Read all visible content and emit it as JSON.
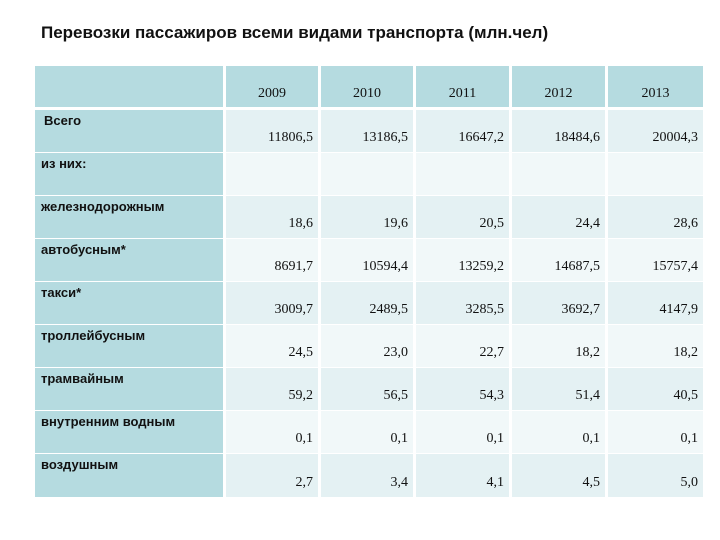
{
  "title": "Перевозки пассажиров всеми видами транспорта (млн.чел)",
  "table": {
    "corner": "",
    "years": [
      "2009",
      "2010",
      "2011",
      "2012",
      "2013"
    ],
    "rows": [
      {
        "label": "Всего",
        "values": [
          "11806,5",
          "13186,5",
          "16647,2",
          "18484,6",
          "20004,3"
        ]
      },
      {
        "label": "из них:",
        "values": [
          "",
          "",
          "",
          "",
          ""
        ]
      },
      {
        "label": "железнодорожным",
        "values": [
          "18,6",
          "19,6",
          "20,5",
          "24,4",
          "28,6"
        ]
      },
      {
        "label": "автобусным*",
        "values": [
          "8691,7",
          "10594,4",
          "13259,2",
          "14687,5",
          "15757,4"
        ]
      },
      {
        "label": "такси*",
        "values": [
          "3009,7",
          "2489,5",
          "3285,5",
          "3692,7",
          "4147,9"
        ]
      },
      {
        "label": "троллейбусным",
        "values": [
          "24,5",
          "23,0",
          "22,7",
          "18,2",
          "18,2"
        ]
      },
      {
        "label": "трамвайным",
        "values": [
          "59,2",
          "56,5",
          "54,3",
          "51,4",
          "40,5"
        ]
      },
      {
        "label": "внутренним водным",
        "values": [
          "0,1",
          "0,1",
          "0,1",
          "0,1",
          "0,1"
        ]
      },
      {
        "label": "воздушным",
        "values": [
          "2,7",
          "3,4",
          "4,1",
          "4,5",
          "5,0"
        ]
      }
    ]
  },
  "colors": {
    "header_bg": "#b5dbe0",
    "row_odd": "#e4f1f3",
    "row_even": "#f1f8f9"
  }
}
